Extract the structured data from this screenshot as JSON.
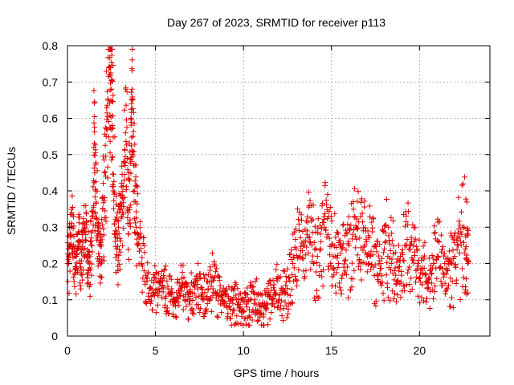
{
  "chart_data": {
    "type": "scatter",
    "title": "Day 267 of 2023, SRMTID for receiver p113",
    "xlabel": "GPS time / hours",
    "ylabel": "SRMTID / TECUs",
    "xlim": [
      0,
      24
    ],
    "ylim": [
      0,
      0.8
    ],
    "xticks": [
      0,
      5,
      10,
      15,
      20
    ],
    "xtick_labels": [
      "0",
      "5",
      "10",
      "15",
      "20"
    ],
    "yticks": [
      0,
      0.1,
      0.2,
      0.3,
      0.4,
      0.5,
      0.6,
      0.7,
      0.8
    ],
    "ytick_labels": [
      "0",
      "0.1",
      "0.2",
      "0.3",
      "0.4",
      "0.5",
      "0.6",
      "0.7",
      "0.8"
    ],
    "grid": true,
    "marker": "+",
    "color": "#e00000",
    "series": [
      {
        "name": "SRMTID",
        "x": [
          0.0,
          0.1,
          0.2,
          0.3,
          0.4,
          0.5,
          0.6,
          0.7,
          0.8,
          0.9,
          1.0,
          1.1,
          1.2,
          1.3,
          1.4,
          1.5,
          1.55,
          1.6,
          1.7,
          1.8,
          1.9,
          2.0,
          2.1,
          2.2,
          2.3,
          2.4,
          2.45,
          2.5,
          2.55,
          2.6,
          2.7,
          2.8,
          2.9,
          3.0,
          3.1,
          3.2,
          3.3,
          3.4,
          3.5,
          3.6,
          3.65,
          3.7,
          3.8,
          3.9,
          4.0,
          4.2,
          4.4,
          4.6,
          4.8,
          5.0,
          5.2,
          5.4,
          5.6,
          5.8,
          6.0,
          6.2,
          6.4,
          6.6,
          6.8,
          7.0,
          7.2,
          7.4,
          7.6,
          7.8,
          8.0,
          8.2,
          8.4,
          8.6,
          8.8,
          9.0,
          9.2,
          9.4,
          9.6,
          9.8,
          10.0,
          10.2,
          10.4,
          10.6,
          10.8,
          11.0,
          11.2,
          11.4,
          11.6,
          11.8,
          12.0,
          12.2,
          12.4,
          12.6,
          12.8,
          13.0,
          13.2,
          13.4,
          13.6,
          13.8,
          14.0,
          14.2,
          14.4,
          14.6,
          14.8,
          15.0,
          15.2,
          15.4,
          15.6,
          15.8,
          16.0,
          16.2,
          16.4,
          16.6,
          16.8,
          17.0,
          17.2,
          17.4,
          17.6,
          17.8,
          18.0,
          18.2,
          18.4,
          18.6,
          18.8,
          19.0,
          19.2,
          19.4,
          19.6,
          19.8,
          20.0,
          20.2,
          20.4,
          20.6,
          20.8,
          21.0,
          21.2,
          21.4,
          21.6,
          21.8,
          22.0,
          22.2,
          22.4,
          22.6,
          22.7
        ],
        "y": [
          0.2,
          0.25,
          0.3,
          0.24,
          0.17,
          0.22,
          0.26,
          0.2,
          0.23,
          0.29,
          0.3,
          0.22,
          0.18,
          0.26,
          0.33,
          0.52,
          0.45,
          0.4,
          0.3,
          0.22,
          0.28,
          0.35,
          0.45,
          0.55,
          0.65,
          0.72,
          0.74,
          0.68,
          0.58,
          0.4,
          0.28,
          0.24,
          0.3,
          0.35,
          0.33,
          0.48,
          0.56,
          0.35,
          0.45,
          0.6,
          0.65,
          0.5,
          0.4,
          0.3,
          0.25,
          0.2,
          0.15,
          0.11,
          0.13,
          0.12,
          0.13,
          0.14,
          0.11,
          0.12,
          0.1,
          0.12,
          0.13,
          0.11,
          0.1,
          0.12,
          0.14,
          0.13,
          0.11,
          0.12,
          0.13,
          0.15,
          0.12,
          0.11,
          0.1,
          0.09,
          0.08,
          0.09,
          0.1,
          0.08,
          0.07,
          0.08,
          0.1,
          0.09,
          0.07,
          0.08,
          0.09,
          0.11,
          0.1,
          0.12,
          0.1,
          0.12,
          0.14,
          0.16,
          0.2,
          0.24,
          0.22,
          0.25,
          0.28,
          0.26,
          0.2,
          0.22,
          0.26,
          0.3,
          0.28,
          0.25,
          0.22,
          0.2,
          0.24,
          0.21,
          0.25,
          0.28,
          0.3,
          0.27,
          0.29,
          0.26,
          0.22,
          0.19,
          0.17,
          0.2,
          0.24,
          0.22,
          0.2,
          0.18,
          0.19,
          0.23,
          0.25,
          0.24,
          0.21,
          0.18,
          0.16,
          0.17,
          0.15,
          0.18,
          0.2,
          0.22,
          0.19,
          0.17,
          0.18,
          0.2,
          0.22,
          0.25,
          0.28,
          0.24,
          0.21
        ],
        "spread": [
          0.09,
          0.09,
          0.09,
          0.09,
          0.08,
          0.08,
          0.08,
          0.08,
          0.08,
          0.08,
          0.08,
          0.08,
          0.08,
          0.1,
          0.12,
          0.18,
          0.16,
          0.14,
          0.12,
          0.1,
          0.12,
          0.15,
          0.18,
          0.2,
          0.22,
          0.22,
          0.2,
          0.2,
          0.18,
          0.15,
          0.12,
          0.1,
          0.12,
          0.13,
          0.13,
          0.16,
          0.18,
          0.15,
          0.16,
          0.18,
          0.18,
          0.16,
          0.14,
          0.12,
          0.1,
          0.08,
          0.07,
          0.06,
          0.07,
          0.06,
          0.06,
          0.07,
          0.06,
          0.06,
          0.06,
          0.06,
          0.07,
          0.06,
          0.06,
          0.06,
          0.07,
          0.07,
          0.06,
          0.06,
          0.07,
          0.08,
          0.07,
          0.06,
          0.06,
          0.05,
          0.06,
          0.06,
          0.07,
          0.06,
          0.05,
          0.06,
          0.07,
          0.07,
          0.05,
          0.06,
          0.07,
          0.07,
          0.06,
          0.08,
          0.07,
          0.08,
          0.09,
          0.1,
          0.11,
          0.13,
          0.12,
          0.13,
          0.12,
          0.12,
          0.11,
          0.12,
          0.13,
          0.13,
          0.13,
          0.12,
          0.12,
          0.11,
          0.13,
          0.12,
          0.13,
          0.13,
          0.12,
          0.12,
          0.12,
          0.12,
          0.12,
          0.11,
          0.1,
          0.12,
          0.14,
          0.13,
          0.12,
          0.1,
          0.11,
          0.13,
          0.13,
          0.12,
          0.11,
          0.1,
          0.08,
          0.09,
          0.08,
          0.1,
          0.13,
          0.15,
          0.12,
          0.1,
          0.11,
          0.13,
          0.14,
          0.16,
          0.17,
          0.14,
          0.12
        ],
        "samples_per_point": 12
      }
    ]
  }
}
